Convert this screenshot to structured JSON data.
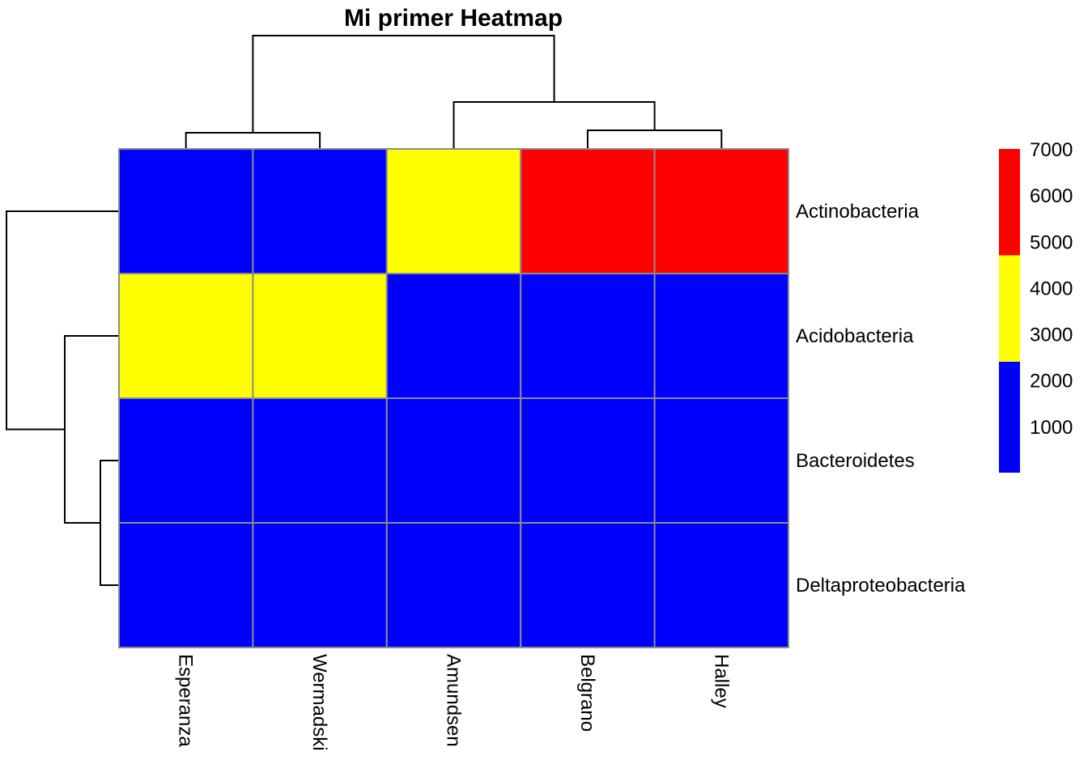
{
  "chart_data": {
    "type": "heatmap",
    "title": "Mi primer Heatmap",
    "columns": [
      "Esperanza",
      "Wermadski",
      "Amundsen",
      "Belgrano",
      "Halley"
    ],
    "rows": [
      "Actinobacteria",
      "Acidobacteria",
      "Bacteroidetes",
      "Deltaproteobacteria"
    ],
    "color_classes": [
      {
        "color": "#0000FF",
        "range": [
          0,
          2400
        ]
      },
      {
        "color": "#FFFF00",
        "range": [
          2400,
          4700
        ]
      },
      {
        "color": "#FF0000",
        "range": [
          4700,
          7000
        ]
      }
    ],
    "cell_colors": [
      [
        "#0000FF",
        "#0000FF",
        "#FFFF00",
        "#FF0000",
        "#FF0000"
      ],
      [
        "#FFFF00",
        "#FFFF00",
        "#0000FF",
        "#0000FF",
        "#0000FF"
      ],
      [
        "#0000FF",
        "#0000FF",
        "#0000FF",
        "#0000FF",
        "#0000FF"
      ],
      [
        "#0000FF",
        "#0000FF",
        "#0000FF",
        "#0000FF",
        "#0000FF"
      ]
    ],
    "legend": {
      "position": "right",
      "ticks": [
        "1000",
        "2000",
        "3000",
        "4000",
        "5000",
        "6000",
        "7000"
      ],
      "min": 0,
      "max": 7000
    },
    "column_dendrogram": true,
    "row_dendrogram": true,
    "grid": true
  }
}
